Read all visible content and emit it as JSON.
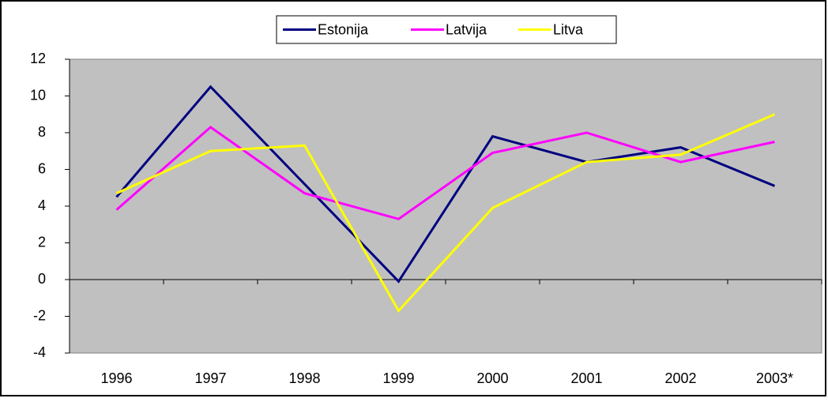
{
  "chart_data": {
    "type": "line",
    "categories": [
      "1996",
      "1997",
      "1998",
      "1999",
      "2000",
      "2001",
      "2002",
      "2003*"
    ],
    "series": [
      {
        "name": "Estonija",
        "color": "#000080",
        "values": [
          4.5,
          10.5,
          5.2,
          -0.1,
          7.8,
          6.4,
          7.2,
          5.1
        ]
      },
      {
        "name": "Latvija",
        "color": "#ff00ff",
        "values": [
          3.8,
          8.3,
          4.7,
          3.3,
          6.9,
          8.0,
          6.4,
          7.5
        ]
      },
      {
        "name": "Litva",
        "color": "#ffff00",
        "values": [
          4.7,
          7.0,
          7.3,
          -1.7,
          3.9,
          6.4,
          6.8,
          9.0
        ]
      }
    ],
    "ylim": [
      -4,
      12
    ],
    "yticks": [
      -4,
      -2,
      0,
      2,
      4,
      6,
      8,
      10,
      12
    ],
    "legend": "top",
    "plot_background": "#c0c0c0"
  }
}
